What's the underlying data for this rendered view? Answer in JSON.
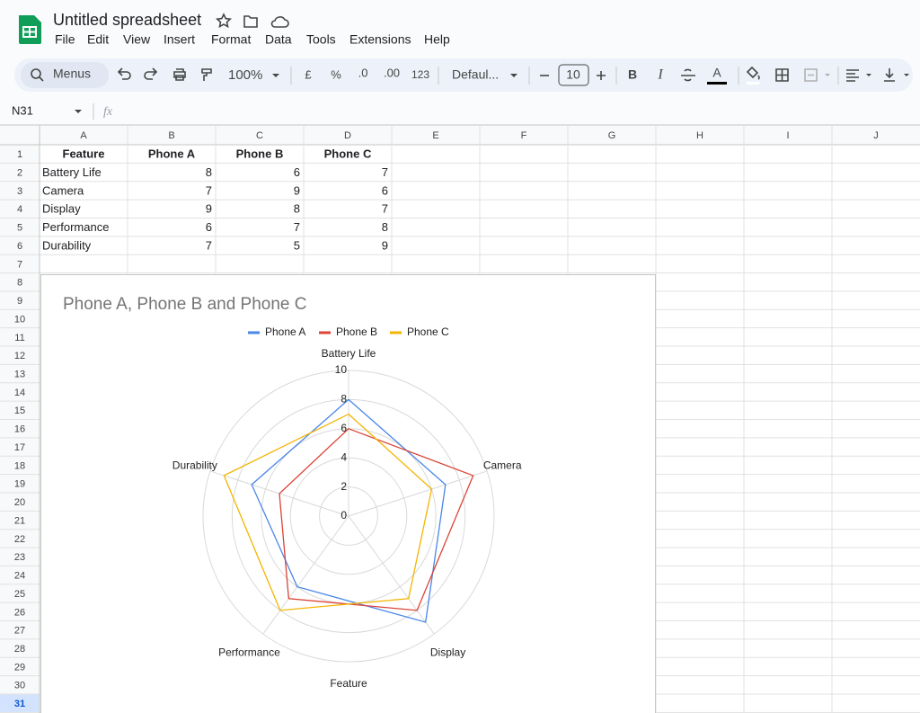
{
  "header": {
    "title": "Untitled spreadsheet",
    "menus": [
      "File",
      "Edit",
      "View",
      "Insert",
      "Format",
      "Data",
      "Tools",
      "Extensions",
      "Help"
    ]
  },
  "toolbar": {
    "search": "Menus",
    "zoom": "100%",
    "currency": "£",
    "percent": "%",
    "decrease_decimal": ".0",
    "increase_decimal": ".00",
    "number_format": "123",
    "font": "Defaul...",
    "font_size": "10",
    "bold": "B",
    "italic": "I",
    "text_color": "A"
  },
  "formula_bar": {
    "cell_ref": "N31",
    "fx": "fx"
  },
  "sheet": {
    "columns": [
      "A",
      "B",
      "C",
      "D",
      "E",
      "F",
      "G",
      "H",
      "I",
      "J"
    ],
    "row_numbers": [
      1,
      2,
      3,
      4,
      5,
      6,
      7,
      8,
      9,
      10,
      11,
      12,
      13,
      14,
      15,
      16,
      17,
      18,
      19,
      20,
      21,
      22,
      23,
      24,
      25,
      26,
      27,
      28,
      29,
      30,
      31
    ],
    "rows": [
      [
        "Feature",
        "Phone A",
        "Phone B",
        "Phone C"
      ],
      [
        "Battery Life",
        8,
        6,
        7
      ],
      [
        "Camera",
        7,
        9,
        6
      ],
      [
        "Display",
        9,
        8,
        7
      ],
      [
        "Performance",
        6,
        7,
        8
      ],
      [
        "Durability",
        7,
        5,
        9
      ]
    ]
  },
  "chart_data": {
    "type": "radar",
    "title": "Phone A, Phone B and Phone C",
    "axis_title": "Feature",
    "categories": [
      "Battery Life",
      "Camera",
      "Display",
      "Performance",
      "Durability"
    ],
    "rlim": [
      0,
      10
    ],
    "rticks": [
      0,
      2,
      4,
      6,
      8,
      10
    ],
    "legend": "top",
    "series": [
      {
        "name": "Phone A",
        "color": "#4a86e8",
        "values": [
          8,
          7,
          9,
          6,
          7
        ]
      },
      {
        "name": "Phone B",
        "color": "#db4437",
        "values": [
          6,
          9,
          8,
          7,
          5
        ]
      },
      {
        "name": "Phone C",
        "color": "#f4b400",
        "values": [
          7,
          6,
          7,
          8,
          9
        ]
      }
    ]
  }
}
